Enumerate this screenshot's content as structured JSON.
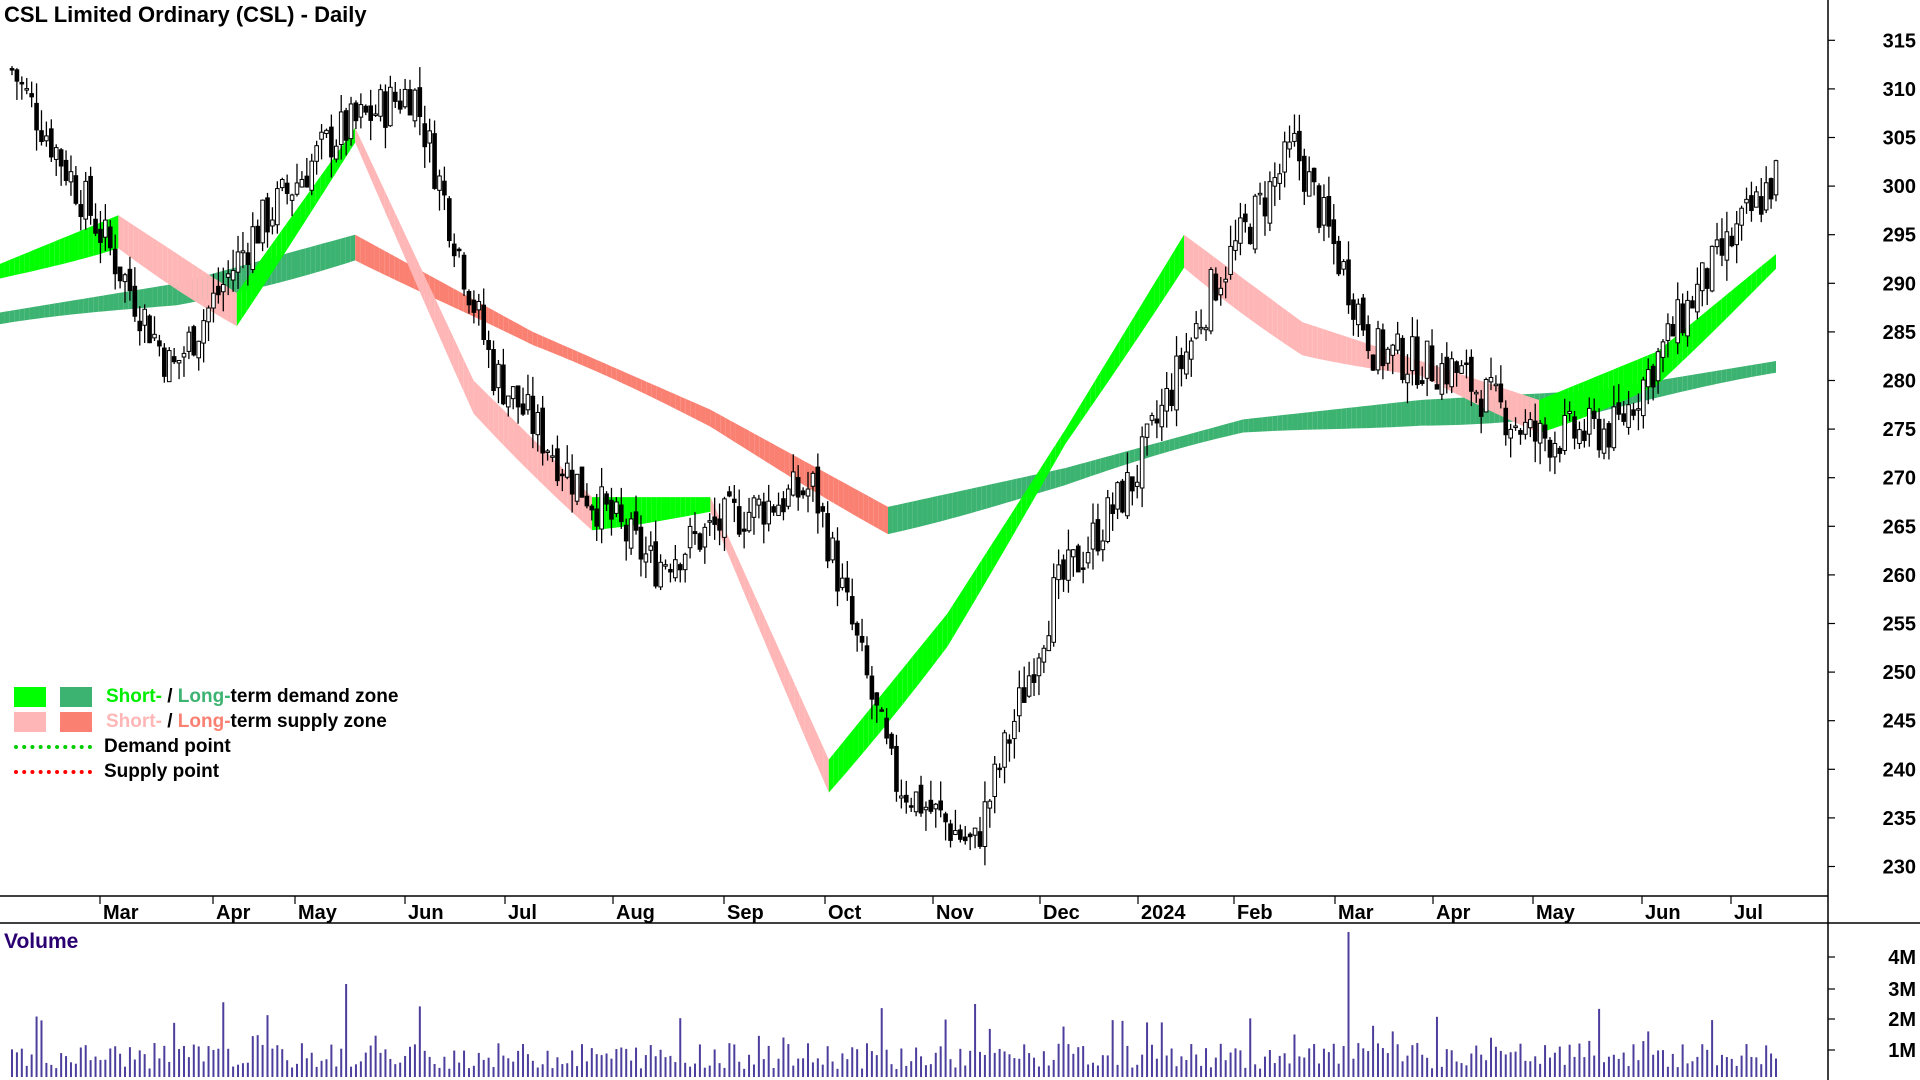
{
  "title": "CSL Limited Ordinary (CSL) - Daily",
  "volume_label": "Volume",
  "legend": {
    "demand_short": "Short-",
    "demand_sep": " / ",
    "demand_long": "Long-",
    "demand_rest": "term demand zone",
    "supply_short": "Short-",
    "supply_sep": " / ",
    "supply_long": "Long-",
    "supply_rest": "term supply zone",
    "demand_point": "Demand point",
    "supply_point": "Supply point"
  },
  "colors": {
    "short_demand": "#00ff00",
    "long_demand": "#3cb371",
    "short_supply": "#ffb6b6",
    "long_supply": "#fa8072",
    "transition": "#ff6a20",
    "demand_point": "#00cc00",
    "supply_point": "#ff0000",
    "volume": "#4b3e9c"
  },
  "chart_data": {
    "type": "candlestick",
    "title": "CSL Limited Ordinary (CSL) - Daily",
    "x_labels": [
      "Mar",
      "Apr",
      "May",
      "Jun",
      "Jul",
      "Aug",
      "Sep",
      "Oct",
      "Nov",
      "Dec",
      "2024",
      "Feb",
      "Mar",
      "Apr",
      "May",
      "Jun",
      "Jul"
    ],
    "y_ticks": [
      230,
      235,
      240,
      245,
      250,
      255,
      260,
      265,
      270,
      275,
      280,
      285,
      290,
      295,
      300,
      305,
      310,
      315
    ],
    "ylim": [
      227,
      318
    ],
    "price_path": [
      {
        "date": "Feb 2023",
        "close": 312
      },
      {
        "date": "Mar 2023",
        "close": 297
      },
      {
        "date": "mid Mar 2023",
        "close": 281
      },
      {
        "date": "Apr 2023",
        "close": 295
      },
      {
        "date": "May 2023",
        "close": 305
      },
      {
        "date": "Jun 2023",
        "close": 310
      },
      {
        "date": "mid Jun 2023",
        "close": 281
      },
      {
        "date": "Jul 2023",
        "close": 270
      },
      {
        "date": "late Jul 2023",
        "close": 261
      },
      {
        "date": "Aug 2023",
        "close": 266
      },
      {
        "date": "Sep 2023",
        "close": 269
      },
      {
        "date": "mid Oct 2023",
        "close": 239
      },
      {
        "date": "early Nov 2023",
        "close": 232
      },
      {
        "date": "Nov 2023",
        "close": 258
      },
      {
        "date": "Dec 2023",
        "close": 270
      },
      {
        "date": "2024",
        "close": 290
      },
      {
        "date": "Feb 2024",
        "close": 304
      },
      {
        "date": "mid Feb 2024",
        "close": 283
      },
      {
        "date": "Mar 2024",
        "close": 281
      },
      {
        "date": "Apr 2024",
        "close": 274
      },
      {
        "date": "May 2024",
        "close": 275
      },
      {
        "date": "Jun 2024",
        "close": 289
      },
      {
        "date": "Jul 2024",
        "close": 301
      }
    ],
    "series": [
      {
        "name": "Short-term zone",
        "points": [
          {
            "date": "Feb 2023",
            "value": 292
          },
          {
            "date": "Mar 2023",
            "value": 297
          },
          {
            "date": "Apr 2023",
            "value": 289
          },
          {
            "date": "Jun 2023",
            "value": 306
          },
          {
            "date": "Jul 2023",
            "value": 280
          },
          {
            "date": "Aug 2023",
            "value": 268
          },
          {
            "date": "Sep 2023",
            "value": 268
          },
          {
            "date": "Nov 2023",
            "value": 241
          },
          {
            "date": "Dec 2023",
            "value": 256
          },
          {
            "date": "2024",
            "value": 275
          },
          {
            "date": "Feb 2024",
            "value": 295
          },
          {
            "date": "Mar 2024",
            "value": 286
          },
          {
            "date": "Apr 2024",
            "value": 282
          },
          {
            "date": "May 2024",
            "value": 278
          },
          {
            "date": "Jun 2024",
            "value": 283
          },
          {
            "date": "Jul 2024",
            "value": 293
          }
        ]
      },
      {
        "name": "Long-term zone",
        "points": [
          {
            "date": "Feb 2023",
            "value": 287
          },
          {
            "date": "Apr 2023",
            "value": 290
          },
          {
            "date": "Jun 2023",
            "value": 295
          },
          {
            "date": "Aug 2023",
            "value": 285
          },
          {
            "date": "Oct 2023",
            "value": 277
          },
          {
            "date": "Dec 2023",
            "value": 267
          },
          {
            "date": "2024",
            "value": 271
          },
          {
            "date": "Feb 2024",
            "value": 276
          },
          {
            "date": "Apr 2024",
            "value": 278
          },
          {
            "date": "Jun 2024",
            "value": 279
          },
          {
            "date": "Jul 2024",
            "value": 282
          }
        ]
      }
    ],
    "volume": {
      "ticks": [
        "1M",
        "2M",
        "3M",
        "4M"
      ],
      "max_spike": "4M"
    },
    "legend_position": "bottom-left",
    "grid": false
  }
}
